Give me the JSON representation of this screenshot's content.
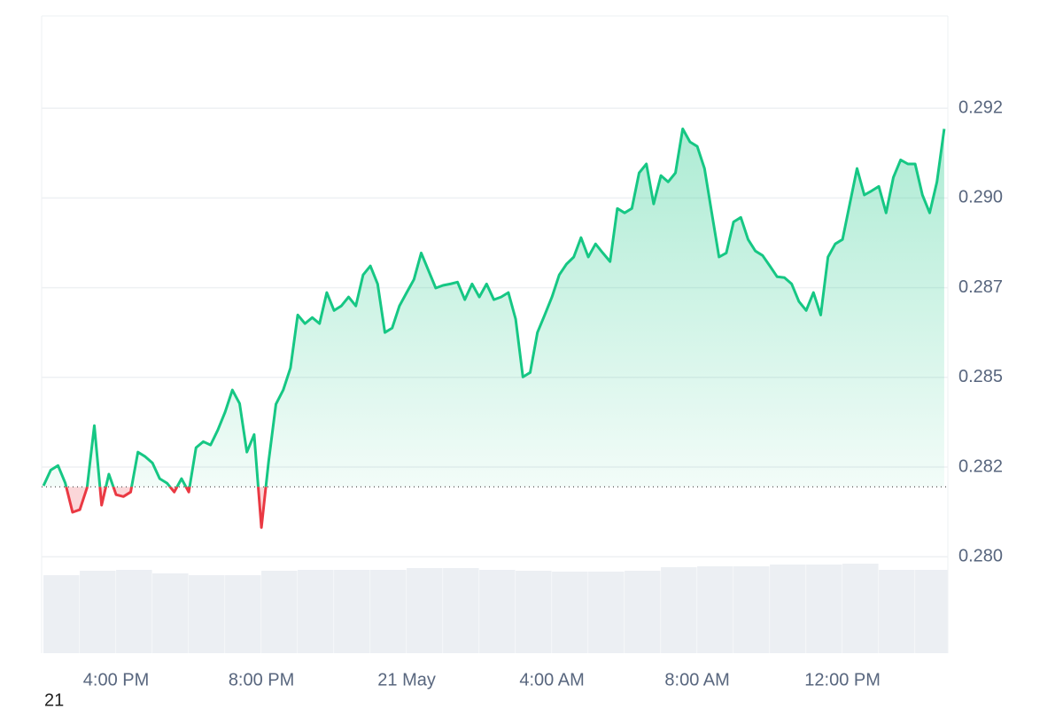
{
  "chart_data": {
    "type": "line",
    "color": "#16c784",
    "down_color": "#ea3943",
    "baseline": 0.28187,
    "grid": true,
    "xlim": [
      13.95,
      38.9
    ],
    "ylim": [
      0.27742,
      0.29447
    ],
    "yticks": [
      {
        "value": 0.28,
        "label": "0.280"
      },
      {
        "value": 0.2824,
        "label": "0.282"
      },
      {
        "value": 0.2848,
        "label": "0.285"
      },
      {
        "value": 0.2872,
        "label": "0.287"
      },
      {
        "value": 0.2896,
        "label": "0.290"
      },
      {
        "value": 0.292,
        "label": "0.292"
      }
    ],
    "xticks": [
      {
        "value": 16,
        "label": "4:00 PM"
      },
      {
        "value": 20,
        "label": "8:00 PM"
      },
      {
        "value": 24,
        "label": "21 May"
      },
      {
        "value": 28,
        "label": "4:00 AM"
      },
      {
        "value": 32,
        "label": "8:00 AM"
      },
      {
        "value": 36,
        "label": "12:00 PM"
      }
    ],
    "corner_label": "21",
    "x": [
      14,
      14.2,
      14.4,
      14.6,
      14.8,
      15,
      15.2,
      15.4,
      15.6,
      15.8,
      16,
      16.2,
      16.4,
      16.6,
      16.8,
      17,
      17.2,
      17.4,
      17.6,
      17.8,
      18,
      18.2,
      18.4,
      18.6,
      18.8,
      19,
      19.2,
      19.4,
      19.6,
      19.8,
      20,
      20.2,
      20.4,
      20.6,
      20.8,
      21,
      21.2,
      21.4,
      21.6,
      21.8,
      22,
      22.2,
      22.4,
      22.6,
      22.8,
      23,
      23.2,
      23.4,
      23.6,
      23.8,
      24,
      24.2,
      24.4,
      24.6,
      24.8,
      25,
      25.2,
      25.4,
      25.6,
      25.8,
      26,
      26.2,
      26.4,
      26.6,
      26.8,
      27,
      27.2,
      27.4,
      27.6,
      27.8,
      28,
      28.2,
      28.4,
      28.6,
      28.8,
      29,
      29.2,
      29.4,
      29.6,
      29.8,
      30,
      30.2,
      30.4,
      30.6,
      30.8,
      31,
      31.2,
      31.4,
      31.6,
      31.8,
      32,
      32.2,
      32.4,
      32.6,
      32.8,
      33,
      33.2,
      33.4,
      33.6,
      33.8,
      34,
      34.2,
      34.4,
      34.6,
      34.8,
      35,
      35.2,
      35.4,
      35.6,
      35.8,
      36,
      36.2,
      36.4,
      36.6,
      36.8,
      37,
      37.2,
      37.4,
      37.6,
      37.8,
      38,
      38.2,
      38.4,
      38.6,
      38.8
    ],
    "values": [
      0.2819,
      0.28232,
      0.28244,
      0.28197,
      0.28119,
      0.28126,
      0.28185,
      0.28351,
      0.28138,
      0.28221,
      0.28166,
      0.28161,
      0.28173,
      0.2828,
      0.28268,
      0.28251,
      0.28209,
      0.28197,
      0.28173,
      0.28209,
      0.28173,
      0.28292,
      0.28308,
      0.28299,
      0.28339,
      0.28387,
      0.28446,
      0.2841,
      0.2828,
      0.28327,
      0.28078,
      0.28256,
      0.28408,
      0.28446,
      0.28505,
      0.28647,
      0.28624,
      0.2864,
      0.28624,
      0.28707,
      0.28659,
      0.28671,
      0.28695,
      0.28671,
      0.28754,
      0.28778,
      0.2873,
      0.286,
      0.28612,
      0.28671,
      0.28707,
      0.28742,
      0.28813,
      0.28766,
      0.28719,
      0.28726,
      0.2873,
      0.28735,
      0.28688,
      0.2873,
      0.28695,
      0.2873,
      0.28688,
      0.28695,
      0.28707,
      0.28636,
      0.28481,
      0.28493,
      0.286,
      0.28647,
      0.28695,
      0.28754,
      0.28783,
      0.28802,
      0.28854,
      0.28802,
      0.28837,
      0.28813,
      0.2879,
      0.28932,
      0.2892,
      0.28932,
      0.29027,
      0.29051,
      0.28944,
      0.2902,
      0.29003,
      0.29027,
      0.29145,
      0.2911,
      0.29098,
      0.29039,
      0.2892,
      0.28802,
      0.28813,
      0.28896,
      0.28908,
      0.28849,
      0.28818,
      0.28806,
      0.28778,
      0.28749,
      0.28747,
      0.2873,
      0.28683,
      0.28659,
      0.28707,
      0.28647,
      0.28802,
      0.28837,
      0.28849,
      0.28944,
      0.29039,
      0.28968,
      0.28979,
      0.28991,
      0.2892,
      0.29015,
      0.29062,
      0.29051,
      0.29051,
      0.28968,
      0.2892,
      0.29003,
      0.29145
    ],
    "volume": {
      "color": "#eceff3",
      "lim": [
        0,
        110
      ],
      "x": [
        14,
        15,
        16,
        17,
        18,
        19,
        20,
        21,
        22,
        23,
        24,
        25,
        26,
        27,
        28,
        29,
        30,
        31,
        32,
        33,
        34,
        35,
        36,
        37,
        38
      ],
      "values": [
        88,
        93,
        94,
        90,
        88,
        88,
        93,
        94,
        94,
        94,
        96,
        96,
        94,
        93,
        92,
        92,
        93,
        97,
        98,
        98,
        100,
        100,
        101,
        94,
        94
      ]
    }
  }
}
